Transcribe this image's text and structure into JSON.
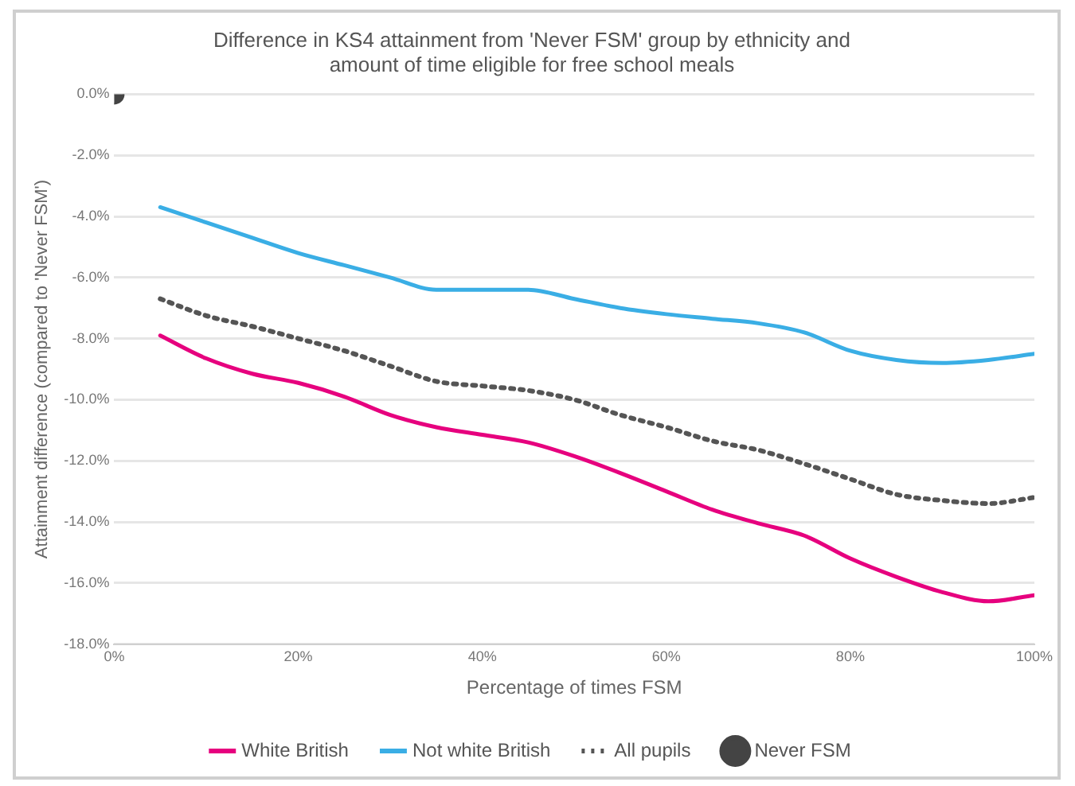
{
  "chart_data": {
    "type": "line",
    "title": "Difference in KS4 attainment from 'Never FSM' group by ethnicity and amount of time eligible for free school meals",
    "xlabel": "Percentage of times FSM",
    "ylabel": "Attainment difference (compared to 'Never FSM')",
    "x": [
      5,
      10,
      15,
      20,
      25,
      30,
      35,
      40,
      45,
      50,
      55,
      60,
      65,
      70,
      75,
      80,
      85,
      90,
      95,
      100
    ],
    "series": [
      {
        "name": "White British",
        "color": "#e6007e",
        "line_style": "solid",
        "marker": "none",
        "values": [
          -7.9,
          -8.65,
          -9.15,
          -9.45,
          -9.9,
          -10.5,
          -10.9,
          -11.15,
          -11.4,
          -11.85,
          -12.4,
          -13.0,
          -13.6,
          -14.05,
          -14.45,
          -15.2,
          -15.8,
          -16.3,
          -16.6,
          -16.4
        ]
      },
      {
        "name": "Not white British",
        "color": "#3aaee5",
        "line_style": "solid",
        "marker": "none",
        "values": [
          -3.7,
          -4.2,
          -4.7,
          -5.2,
          -5.6,
          -6.0,
          -6.4,
          -6.4,
          -6.4,
          -6.7,
          -7.0,
          -7.2,
          -7.35,
          -7.5,
          -7.8,
          -8.4,
          -8.7,
          -8.8,
          -8.7,
          -8.5
        ]
      },
      {
        "name": "All pupils",
        "color": "#555555",
        "line_style": "dotted",
        "marker": "none",
        "values": [
          -6.7,
          -7.25,
          -7.6,
          -8.0,
          -8.4,
          -8.9,
          -9.4,
          -9.55,
          -9.7,
          -10.0,
          -10.5,
          -10.9,
          -11.35,
          -11.65,
          -12.1,
          -12.6,
          -13.1,
          -13.3,
          -13.4,
          -13.2
        ]
      },
      {
        "name": "Never FSM",
        "type": "scatter",
        "color": "#444444",
        "marker": "circle",
        "x": [
          0
        ],
        "values": [
          0
        ]
      }
    ],
    "xlim": [
      0,
      100
    ],
    "xticks": [
      {
        "value": 0,
        "label": "0%"
      },
      {
        "value": 20,
        "label": "20%"
      },
      {
        "value": 40,
        "label": "40%"
      },
      {
        "value": 60,
        "label": "60%"
      },
      {
        "value": 80,
        "label": "80%"
      },
      {
        "value": 100,
        "label": "100%"
      }
    ],
    "ylim": [
      -18,
      0
    ],
    "yticks": [
      {
        "value": 0,
        "label": "0.0%"
      },
      {
        "value": -2,
        "label": "-2.0%"
      },
      {
        "value": -4,
        "label": "-4.0%"
      },
      {
        "value": -6,
        "label": "-6.0%"
      },
      {
        "value": -8,
        "label": "-8.0%"
      },
      {
        "value": -10,
        "label": "-10.0%"
      },
      {
        "value": -12,
        "label": "-12.0%"
      },
      {
        "value": -14,
        "label": "-14.0%"
      },
      {
        "value": -16,
        "label": "-16.0%"
      },
      {
        "value": -18,
        "label": "-18.0%"
      }
    ],
    "grid": "y",
    "legend": "bottom"
  }
}
